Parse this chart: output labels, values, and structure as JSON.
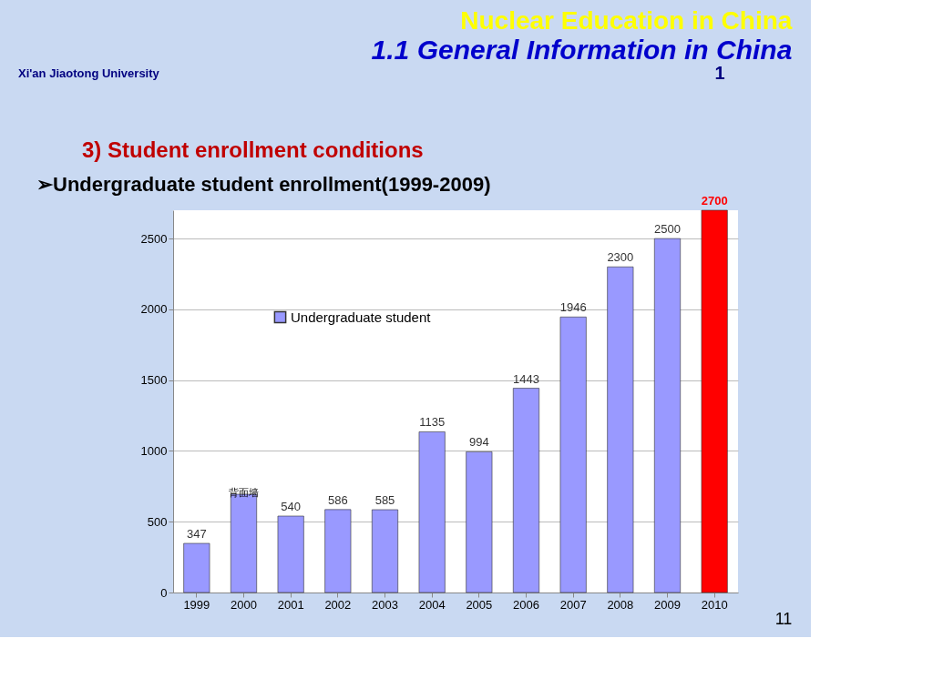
{
  "chart_data": {
    "type": "bar",
    "title": "Nuclear Education in China",
    "subtitle": "1.1  General  Information  in China",
    "categories": [
      "1999",
      "2000",
      "2001",
      "2002",
      "2003",
      "2004",
      "2005",
      "2006",
      "2007",
      "2008",
      "2009",
      "2010"
    ],
    "series": [
      {
        "name": "Undergraduate student",
        "color": "#9999ff",
        "values": [
          347,
          694,
          540,
          586,
          585,
          1135,
          994,
          1443,
          1946,
          2300,
          2500,
          null
        ],
        "value_labels": [
          "347",
          null,
          "540",
          "586",
          "585",
          "1135",
          "994",
          "1443",
          "1946",
          "2300",
          "2500",
          null
        ]
      },
      {
        "color": "#ff0000",
        "values": [
          null,
          null,
          null,
          null,
          null,
          null,
          null,
          null,
          null,
          null,
          null,
          2700
        ],
        "value_labels": [
          null,
          null,
          null,
          null,
          null,
          null,
          null,
          null,
          null,
          null,
          null,
          "2700"
        ]
      }
    ],
    "ylim": [
      0,
      2700
    ],
    "yticks": [
      0,
      500,
      1000,
      1500,
      2000,
      2500
    ],
    "grid": "y",
    "legend": "top left",
    "annotations": [
      "1",
      "Xi'an Jiaotong University",
      "3)  Student enrollment conditions",
      "➢Undergraduate student enrollment(1999-2009)",
      "背面墙",
      "11"
    ]
  }
}
